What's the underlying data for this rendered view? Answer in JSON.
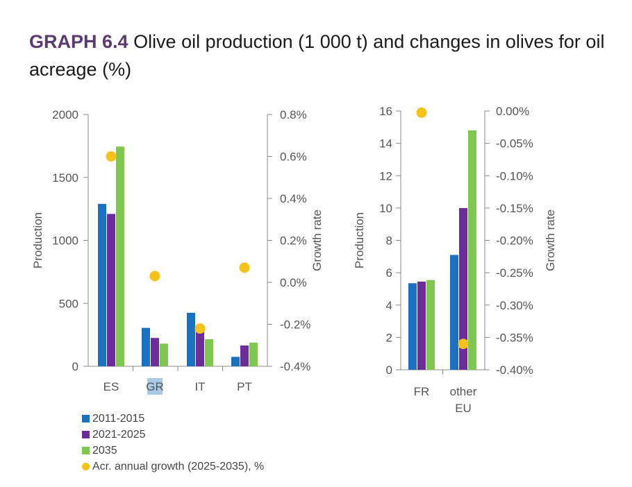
{
  "title": {
    "label": "GRAPH 6.4",
    "text": "Olive oil production (1 000 t) and changes in olives for oil acreage (%)"
  },
  "colors": {
    "s2011": "#1a6fbf",
    "s2021": "#6a2d9a",
    "s2035": "#7ec850",
    "growth": "#f5c21b",
    "axis": "#888888",
    "highlight": "#a9c9e4"
  },
  "legend": [
    {
      "label": "2011-2015",
      "type": "bar",
      "color_key": "s2011"
    },
    {
      "label": "2021-2025",
      "type": "bar",
      "color_key": "s2021"
    },
    {
      "label": "2035",
      "type": "bar",
      "color_key": "s2035"
    },
    {
      "label": "Acr. annual growth (2025-2035), %",
      "type": "dot",
      "color_key": "growth"
    }
  ],
  "chart_data": [
    {
      "type": "bar",
      "categories": [
        "ES",
        "GR",
        "IT",
        "PT"
      ],
      "highlighted_category": "GR",
      "series": [
        {
          "name": "2011-2015",
          "values": [
            1290,
            305,
            425,
            75
          ]
        },
        {
          "name": "2021-2025",
          "values": [
            1210,
            225,
            290,
            165
          ]
        },
        {
          "name": "2035",
          "values": [
            1745,
            180,
            215,
            188
          ]
        }
      ],
      "secondary_series": {
        "name": "Acr. annual growth (2025-2035), %",
        "values": [
          0.6,
          0.03,
          -0.22,
          0.07
        ]
      },
      "ylabel": "Production",
      "ylim": [
        0,
        2000
      ],
      "yticks": [
        0,
        500,
        1000,
        1500,
        2000
      ],
      "ytick_labels": [
        "0",
        "500",
        "1000",
        "1500",
        "2000"
      ],
      "y2label": "Growth rate",
      "y2lim": [
        -0.4,
        0.8
      ],
      "y2ticks": [
        -0.4,
        -0.2,
        0.0,
        0.2,
        0.4,
        0.6,
        0.8
      ],
      "y2tick_labels": [
        "-0.4%",
        "-0.2%",
        "0.0%",
        "0.2%",
        "0.4%",
        "0.6%",
        "0.8%"
      ]
    },
    {
      "type": "bar",
      "categories": [
        "FR",
        "other EU"
      ],
      "series": [
        {
          "name": "2011-2015",
          "values": [
            5.35,
            7.1
          ]
        },
        {
          "name": "2021-2025",
          "values": [
            5.45,
            10.0
          ]
        },
        {
          "name": "2035",
          "values": [
            5.55,
            14.8
          ]
        }
      ],
      "secondary_series": {
        "name": "Acr. annual growth (2025-2035), %",
        "values": [
          -0.0025,
          -0.36
        ]
      },
      "ylabel": "Production",
      "ylim": [
        0,
        16
      ],
      "yticks": [
        0,
        2,
        4,
        6,
        8,
        10,
        12,
        14,
        16
      ],
      "ytick_labels": [
        "0",
        "2",
        "4",
        "6",
        "8",
        "10",
        "12",
        "14",
        "16"
      ],
      "y2label": "Growth rate",
      "y2lim": [
        -0.4,
        0.0
      ],
      "y2ticks": [
        -0.4,
        -0.35,
        -0.3,
        -0.25,
        -0.2,
        -0.15,
        -0.1,
        -0.05,
        0.0
      ],
      "y2tick_labels": [
        "-0.40%",
        "-0.35%",
        "-0.30%",
        "-0.25%",
        "-0.20%",
        "-0.15%",
        "-0.10%",
        "-0.05%",
        "0.00%"
      ]
    }
  ]
}
